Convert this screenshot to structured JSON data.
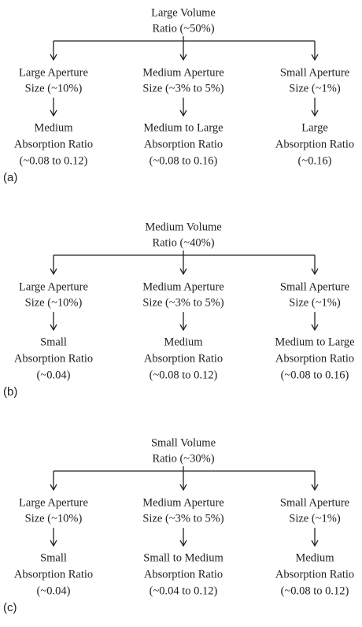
{
  "panels": [
    {
      "label": "(a)",
      "root": [
        "Large Volume",
        "Ratio (~50%)"
      ],
      "branches": [
        {
          "aperture": [
            "Large Aperture",
            "Size (~10%)"
          ],
          "absorption": [
            "Medium",
            "Absorption Ratio",
            "(~0.08 to 0.12)"
          ]
        },
        {
          "aperture": [
            "Medium Aperture",
            "Size (~3% to 5%)"
          ],
          "absorption": [
            "Medium to Large",
            "Absorption Ratio",
            "(~0.08 to 0.16)"
          ]
        },
        {
          "aperture": [
            "Small Aperture",
            "Size (~1%)"
          ],
          "absorption": [
            "Large",
            "Absorption Ratio",
            "(~0.16)"
          ]
        }
      ]
    },
    {
      "label": "(b)",
      "root": [
        "Medium Volume",
        "Ratio (~40%)"
      ],
      "branches": [
        {
          "aperture": [
            "Large Aperture",
            "Size (~10%)"
          ],
          "absorption": [
            "Small",
            "Absorption Ratio",
            "(~0.04)"
          ]
        },
        {
          "aperture": [
            "Medium Aperture",
            "Size (~3% to 5%)"
          ],
          "absorption": [
            "Medium",
            "Absorption Ratio",
            "(~0.08 to 0.12)"
          ]
        },
        {
          "aperture": [
            "Small Aperture",
            "Size (~1%)"
          ],
          "absorption": [
            "Medium to Large",
            "Absorption Ratio",
            "(~0.08 to 0.16)"
          ]
        }
      ]
    },
    {
      "label": "(c)",
      "root": [
        "Small Volume",
        "Ratio (~30%)"
      ],
      "branches": [
        {
          "aperture": [
            "Large Aperture",
            "Size (~10%)"
          ],
          "absorption": [
            "Small",
            "Absorption Ratio",
            "(~0.04)"
          ]
        },
        {
          "aperture": [
            "Medium Aperture",
            "Size (~3% to 5%)"
          ],
          "absorption": [
            "Small to Medium",
            "Absorption Ratio",
            "(~0.04 to 0.12)"
          ]
        },
        {
          "aperture": [
            "Small Aperture",
            "Size (~1%)"
          ],
          "absorption": [
            "Medium",
            "Absorption Ratio",
            "(~0.08 to 0.12)"
          ]
        }
      ]
    }
  ]
}
